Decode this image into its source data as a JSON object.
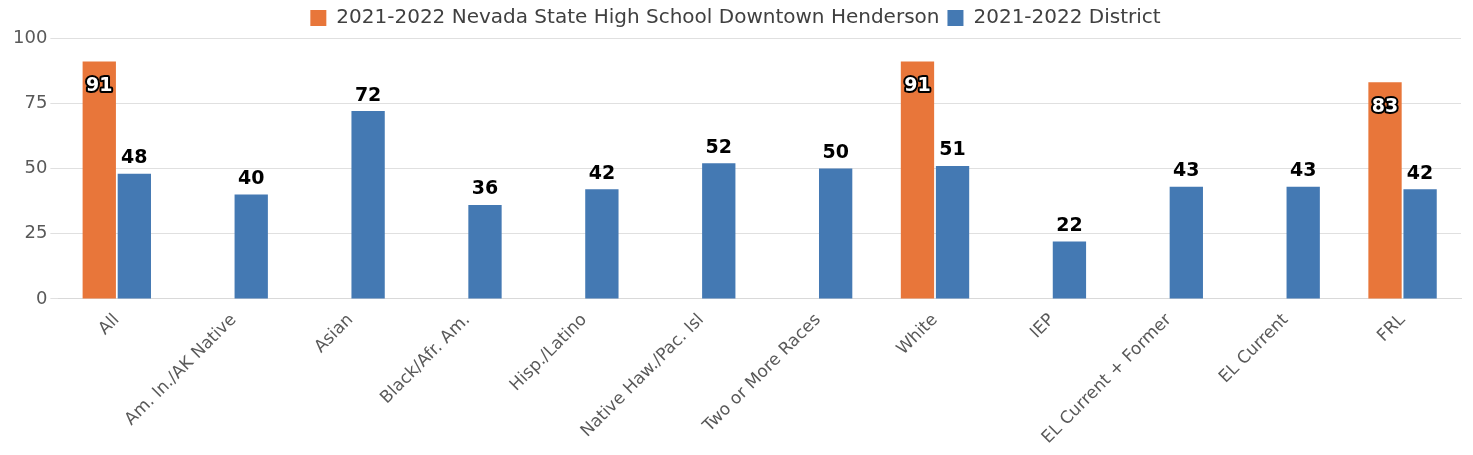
{
  "chart_data": {
    "type": "bar",
    "categories": [
      "All",
      "Am. In./AK Native",
      "Asian",
      "Black/Afr. Am.",
      "Hisp./Latino",
      "Native Haw./Pac. Isl",
      "Two or More Races",
      "White",
      "IEP",
      "EL Current + Former",
      "EL Current",
      "FRL"
    ],
    "series": [
      {
        "name": "2021-2022 Nevada State High School Downtown Henderson",
        "color": "#e8763a",
        "values": [
          91,
          null,
          null,
          null,
          null,
          null,
          null,
          91,
          null,
          null,
          null,
          83
        ]
      },
      {
        "name": "2021-2022 District",
        "color": "#4479b3",
        "values": [
          48,
          40,
          72,
          36,
          42,
          52,
          50,
          51,
          22,
          43,
          43,
          42
        ]
      }
    ],
    "ylim": [
      0,
      100
    ],
    "yticks": [
      0,
      25,
      50,
      75,
      100
    ],
    "grid": "y",
    "legend": "top",
    "data_labels": true
  }
}
